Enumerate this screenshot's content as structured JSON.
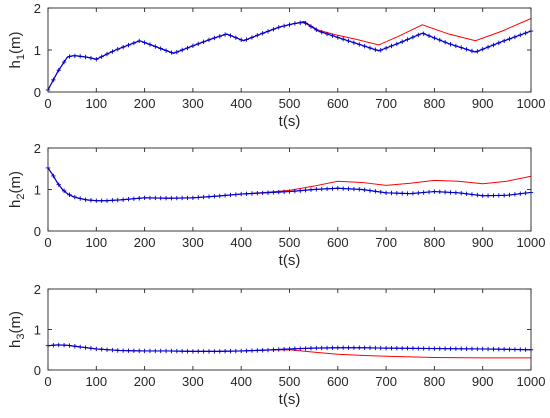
{
  "chart_data": [
    {
      "type": "line",
      "ylabel": "h",
      "ylabel_sub": "1",
      "ylabel_unit": "(m)",
      "xlabel": "t(s)",
      "xlim": [
        0,
        1000
      ],
      "ylim": [
        0,
        2
      ],
      "xticks": [
        0,
        100,
        200,
        300,
        400,
        500,
        600,
        700,
        800,
        900,
        1000
      ],
      "yticks": [
        0,
        1,
        2
      ],
      "grid": false,
      "series": [
        {
          "style": "red-line",
          "color": "#ff0000",
          "x": [
            0,
            20,
            40,
            50,
            60,
            80,
            100,
            140,
            190,
            230,
            260,
            300,
            340,
            370,
            405,
            440,
            480,
            510,
            530,
            560,
            600,
            640,
            685,
            730,
            775,
            830,
            885,
            940,
            1000
          ],
          "y": [
            0.05,
            0.48,
            0.83,
            0.86,
            0.86,
            0.83,
            0.78,
            1.0,
            1.22,
            1.05,
            0.92,
            1.1,
            1.27,
            1.38,
            1.22,
            1.38,
            1.55,
            1.63,
            1.68,
            1.47,
            1.35,
            1.25,
            1.12,
            1.35,
            1.6,
            1.38,
            1.22,
            1.45,
            1.75
          ]
        },
        {
          "style": "blue-plus-markers",
          "color": "#0000cc",
          "x": [
            0,
            20,
            40,
            50,
            60,
            80,
            100,
            140,
            190,
            230,
            260,
            300,
            340,
            370,
            405,
            440,
            480,
            510,
            530,
            560,
            600,
            640,
            685,
            730,
            775,
            830,
            885,
            940,
            1000
          ],
          "y": [
            0.05,
            0.48,
            0.83,
            0.86,
            0.86,
            0.83,
            0.78,
            1.0,
            1.22,
            1.05,
            0.92,
            1.1,
            1.27,
            1.38,
            1.22,
            1.38,
            1.55,
            1.63,
            1.66,
            1.45,
            1.3,
            1.15,
            0.98,
            1.18,
            1.4,
            1.15,
            0.95,
            1.2,
            1.45
          ]
        }
      ]
    },
    {
      "type": "line",
      "ylabel": "h",
      "ylabel_sub": "2",
      "ylabel_unit": "(m)",
      "xlabel": "t(s)",
      "xlim": [
        0,
        1000
      ],
      "ylim": [
        0,
        2
      ],
      "xticks": [
        0,
        100,
        200,
        300,
        400,
        500,
        600,
        700,
        800,
        900,
        1000
      ],
      "yticks": [
        0,
        1,
        2
      ],
      "grid": false,
      "series": [
        {
          "style": "red-line",
          "color": "#ff0000",
          "x": [
            0,
            10,
            20,
            30,
            40,
            50,
            60,
            80,
            100,
            120,
            150,
            200,
            250,
            300,
            350,
            400,
            450,
            500,
            550,
            600,
            650,
            700,
            750,
            800,
            850,
            900,
            950,
            1000
          ],
          "y": [
            1.52,
            1.35,
            1.15,
            1.0,
            0.9,
            0.84,
            0.8,
            0.75,
            0.73,
            0.73,
            0.75,
            0.8,
            0.79,
            0.8,
            0.84,
            0.89,
            0.93,
            0.98,
            1.08,
            1.2,
            1.17,
            1.1,
            1.15,
            1.22,
            1.2,
            1.14,
            1.2,
            1.32
          ]
        },
        {
          "style": "blue-plus-markers",
          "color": "#0000cc",
          "x": [
            0,
            10,
            20,
            30,
            40,
            50,
            60,
            80,
            100,
            120,
            150,
            200,
            250,
            300,
            350,
            400,
            450,
            500,
            550,
            600,
            650,
            700,
            750,
            800,
            850,
            900,
            950,
            1000
          ],
          "y": [
            1.52,
            1.35,
            1.15,
            1.0,
            0.9,
            0.84,
            0.8,
            0.75,
            0.73,
            0.73,
            0.75,
            0.8,
            0.79,
            0.8,
            0.84,
            0.89,
            0.92,
            0.95,
            1.0,
            1.03,
            1.0,
            0.92,
            0.9,
            0.95,
            0.92,
            0.85,
            0.86,
            0.93
          ]
        }
      ]
    },
    {
      "type": "line",
      "ylabel": "h",
      "ylabel_sub": "3",
      "ylabel_unit": "(m)",
      "xlabel": "t(s)",
      "xlim": [
        0,
        1000
      ],
      "ylim": [
        0,
        2
      ],
      "xticks": [
        0,
        100,
        200,
        300,
        400,
        500,
        600,
        700,
        800,
        900,
        1000
      ],
      "yticks": [
        0,
        1,
        2
      ],
      "grid": false,
      "series": [
        {
          "style": "red-line",
          "color": "#ff0000",
          "x": [
            0,
            20,
            40,
            60,
            100,
            150,
            200,
            250,
            300,
            350,
            400,
            450,
            500,
            550,
            600,
            650,
            700,
            800,
            900,
            1000
          ],
          "y": [
            0.6,
            0.62,
            0.61,
            0.58,
            0.52,
            0.48,
            0.47,
            0.47,
            0.46,
            0.46,
            0.47,
            0.49,
            0.5,
            0.44,
            0.39,
            0.36,
            0.34,
            0.31,
            0.3,
            0.3
          ]
        },
        {
          "style": "blue-plus-markers",
          "color": "#0000cc",
          "x": [
            0,
            20,
            40,
            60,
            100,
            150,
            200,
            250,
            300,
            350,
            400,
            450,
            500,
            550,
            600,
            650,
            700,
            800,
            900,
            1000
          ],
          "y": [
            0.6,
            0.62,
            0.61,
            0.58,
            0.52,
            0.48,
            0.47,
            0.47,
            0.46,
            0.46,
            0.47,
            0.49,
            0.52,
            0.54,
            0.55,
            0.55,
            0.54,
            0.53,
            0.52,
            0.5
          ]
        }
      ]
    }
  ]
}
